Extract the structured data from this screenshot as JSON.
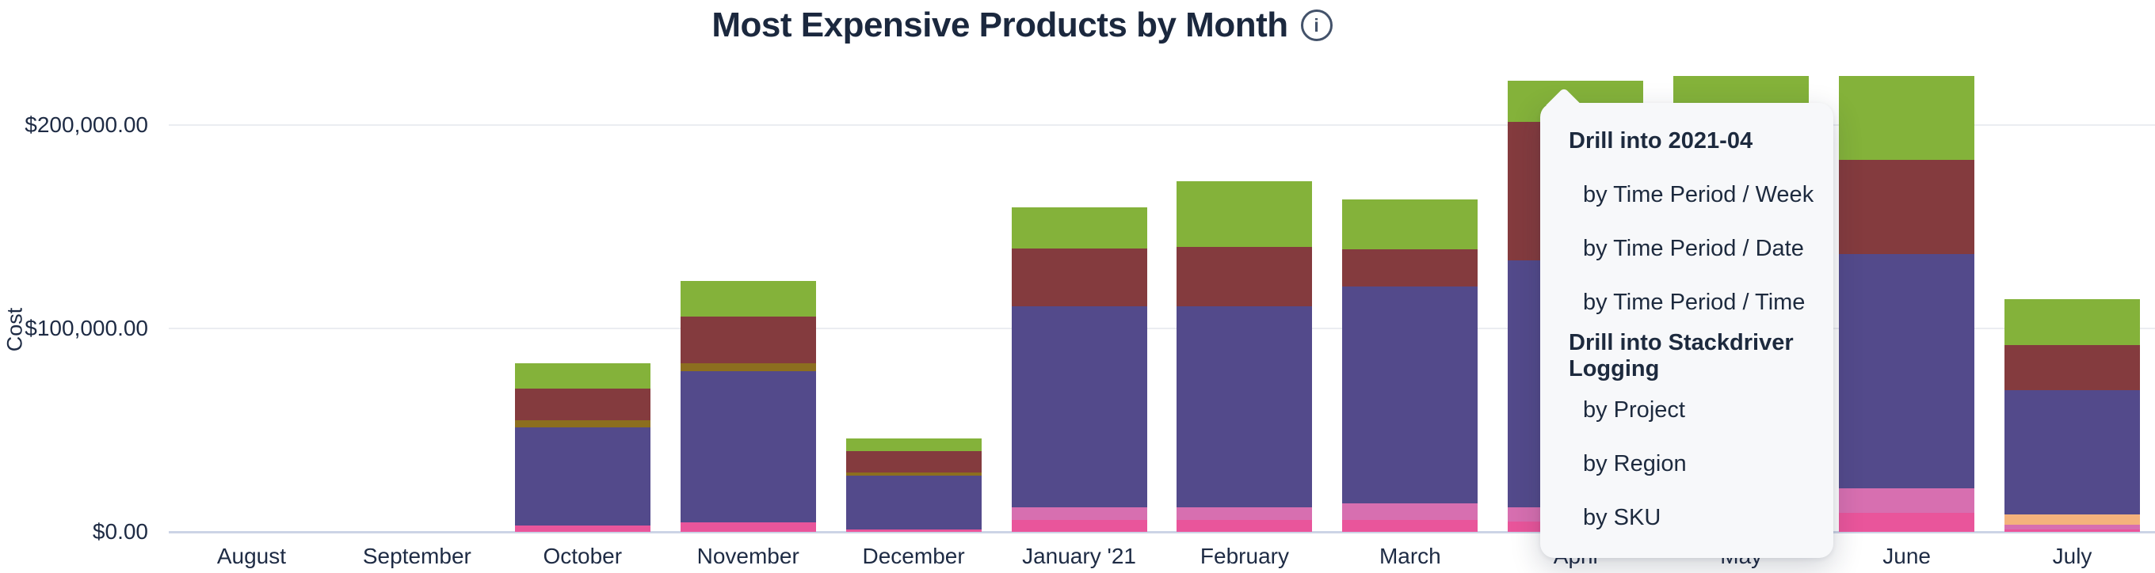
{
  "title": {
    "text": "Most Expensive Products by Month",
    "info_icon": "i"
  },
  "popup": {
    "groups": [
      {
        "header": "Drill into 2021-04",
        "items": [
          "by Time Period / Week",
          "by Time Period / Date",
          "by Time Period / Time"
        ]
      },
      {
        "header": "Drill into Stackdriver Logging",
        "items": [
          "by Project",
          "by Region",
          "by SKU"
        ]
      }
    ]
  },
  "chart_data": {
    "type": "bar",
    "stacked": true,
    "title": "Most Expensive Products by Month",
    "xlabel": "",
    "ylabel": "Cost",
    "ylim": [
      0,
      230000
    ],
    "grid": "horizontal",
    "legend_position": "none",
    "y_ticks": [
      {
        "label": "$0.00",
        "value": 0
      },
      {
        "label": "$100,000.00",
        "value": 100000
      },
      {
        "label": "$200,000.00",
        "value": 200000
      }
    ],
    "categories": [
      "August",
      "September",
      "October",
      "November",
      "December",
      "January '21",
      "February",
      "March",
      "April",
      "May",
      "June",
      "July"
    ],
    "series": [
      {
        "name": "pink-bright",
        "color": "#e9559b",
        "values": [
          0,
          0,
          3000,
          4500,
          1200,
          6000,
          6000,
          6000,
          5000,
          9500,
          9500,
          1000
        ]
      },
      {
        "name": "pink-light",
        "color": "#d76fb0",
        "values": [
          0,
          0,
          0,
          0,
          0,
          6000,
          6000,
          8000,
          7000,
          12000,
          12000,
          2500
        ]
      },
      {
        "name": "orange",
        "color": "#f4b27c",
        "values": [
          0,
          0,
          0,
          0,
          0,
          0,
          0,
          0,
          0,
          0,
          0,
          5000
        ]
      },
      {
        "name": "purple",
        "color": "#534a8b",
        "values": [
          0,
          0,
          48500,
          74500,
          26500,
          99000,
          99000,
          106500,
          121500,
          115500,
          115000,
          61000
        ]
      },
      {
        "name": "olive",
        "color": "#8c6e1f",
        "values": [
          0,
          0,
          3500,
          4000,
          1500,
          0,
          0,
          0,
          0,
          0,
          0,
          0
        ]
      },
      {
        "name": "maroon",
        "color": "#843b3e",
        "values": [
          0,
          0,
          15500,
          23000,
          10500,
          28500,
          29000,
          18500,
          68000,
          46500,
          46500,
          22500
        ]
      },
      {
        "name": "green",
        "color": "#84b23a",
        "values": [
          0,
          0,
          12500,
          17500,
          6300,
          20000,
          32500,
          24500,
          20500,
          40500,
          41000,
          22500
        ]
      }
    ],
    "annotation": "drill menu anchored on April (2021-04) bar"
  },
  "colors": {
    "accent_green": "#84b23a",
    "accent_purple": "#534a8b",
    "accent_maroon": "#843b3e",
    "accent_pink": "#e9559b",
    "popup_bg": "#f7f8fa",
    "gridline": "#ebedf1",
    "axis_line": "#ccd4e6",
    "text": "#1e2b44"
  }
}
